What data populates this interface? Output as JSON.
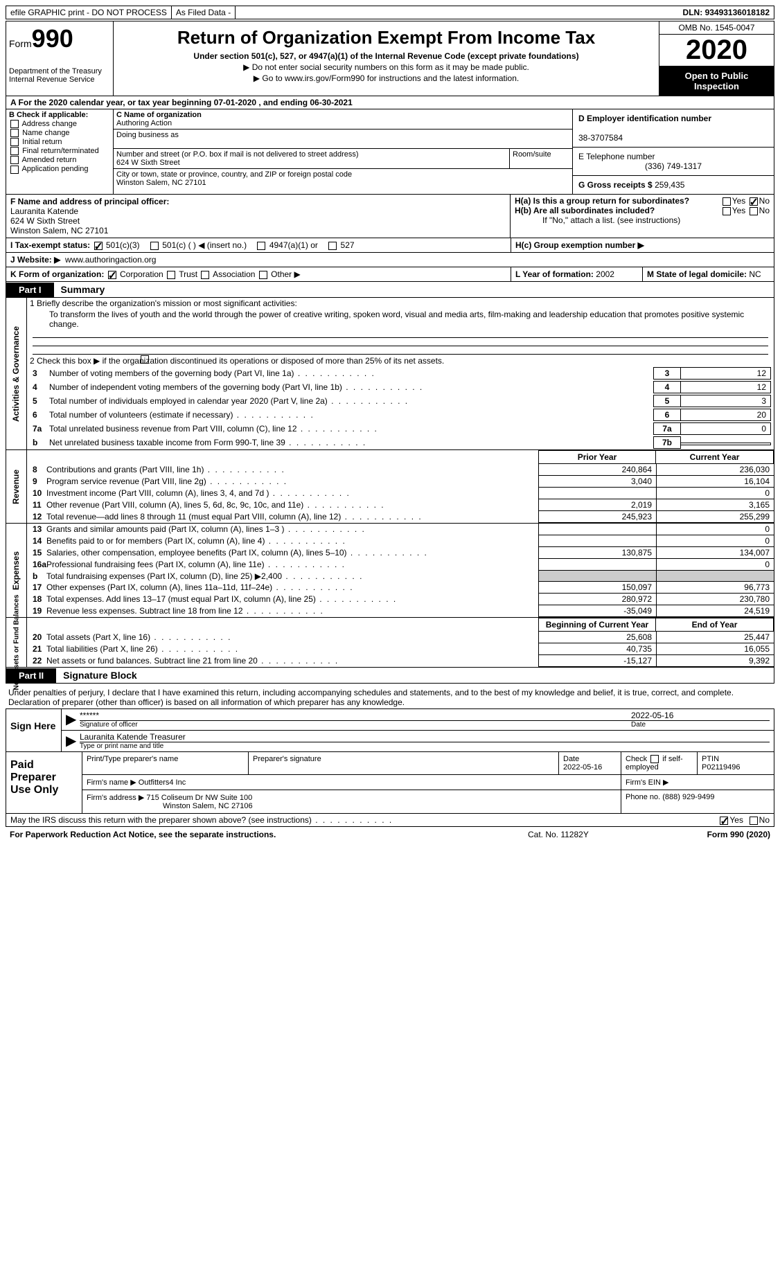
{
  "top": {
    "efile": "efile GRAPHIC print - DO NOT PROCESS",
    "asfiled": "As Filed Data -",
    "dln_lbl": "DLN:",
    "dln": "93493136018182"
  },
  "header": {
    "form": "Form",
    "num": "990",
    "dept": "Department of the Treasury\nInternal Revenue Service",
    "title": "Return of Organization Exempt From Income Tax",
    "sub": "Under section 501(c), 527, or 4947(a)(1) of the Internal Revenue Code (except private foundations)",
    "i1": "▶ Do not enter social security numbers on this form as it may be made public.",
    "i2_pre": "▶ Go to ",
    "i2_link": "www.irs.gov/Form990",
    "i2_post": " for instructions and the latest information.",
    "omb": "OMB No. 1545-0047",
    "year": "2020",
    "open": "Open to Public Inspection"
  },
  "a": {
    "text": "A   For the 2020 calendar year, or tax year beginning 07-01-2020  , and ending 06-30-2021"
  },
  "b": {
    "title": "B Check if applicable:",
    "opts": [
      "Address change",
      "Name change",
      "Initial return",
      "Final return/terminated",
      "Amended return",
      "Application pending"
    ]
  },
  "c": {
    "lbl_name": "C Name of organization",
    "name": "Authoring Action",
    "dba_lbl": "Doing business as",
    "dba": "",
    "street_lbl": "Number and street (or P.O. box if mail is not delivered to street address)",
    "room_lbl": "Room/suite",
    "street": "624 W Sixth Street",
    "city_lbl": "City or town, state or province, country, and ZIP or foreign postal code",
    "city": "Winston Salem, NC  27101"
  },
  "d": {
    "lbl": "D Employer identification number",
    "val": "38-3707584"
  },
  "e": {
    "lbl": "E Telephone number",
    "val": "(336) 749-1317"
  },
  "g": {
    "lbl": "G Gross receipts $",
    "val": "259,435"
  },
  "f": {
    "lbl": "F  Name and address of principal officer:",
    "name": "Lauranita Katende",
    "addr1": "624 W Sixth Street",
    "addr2": "Winston Salem, NC  27101"
  },
  "h": {
    "a": "H(a)  Is this a group return for subordinates?",
    "b": "H(b)  Are all subordinates included?",
    "note": "If \"No,\" attach a list. (see instructions)",
    "c": "H(c)  Group exemption number ▶",
    "yes": "Yes",
    "no": "No"
  },
  "i": {
    "lbl": "I   Tax-exempt status:",
    "o1": "501(c)(3)",
    "o2": "501(c) (   ) ◀ (insert no.)",
    "o3": "4947(a)(1) or",
    "o4": "527"
  },
  "j": {
    "lbl": "J   Website: ▶",
    "val": "www.authoringaction.org"
  },
  "k": {
    "lbl": "K Form of organization:",
    "o1": "Corporation",
    "o2": "Trust",
    "o3": "Association",
    "o4": "Other ▶"
  },
  "l": {
    "lbl": "L Year of formation:",
    "val": "2002"
  },
  "m": {
    "lbl": "M State of legal domicile:",
    "val": "NC"
  },
  "part1": {
    "tab": "Part I",
    "title": "Summary"
  },
  "ag": {
    "label": "Activities & Governance",
    "l1": "1  Briefly describe the organization's mission or most significant activities:",
    "mission": "To transform the lives of youth and the world through the power of creative writing, spoken word, visual and media arts, film-making and leadership education that promotes positive systemic change.",
    "l2": "2   Check this box ▶        if the organization discontinued its operations or disposed of more than 25% of its net assets.",
    "rows": [
      {
        "n": "3",
        "d": "Number of voting members of the governing body (Part VI, line 1a)",
        "b": "3",
        "v": "12"
      },
      {
        "n": "4",
        "d": "Number of independent voting members of the governing body (Part VI, line 1b)",
        "b": "4",
        "v": "12"
      },
      {
        "n": "5",
        "d": "Total number of individuals employed in calendar year 2020 (Part V, line 2a)",
        "b": "5",
        "v": "3"
      },
      {
        "n": "6",
        "d": "Total number of volunteers (estimate if necessary)",
        "b": "6",
        "v": "20"
      },
      {
        "n": "7a",
        "d": "Total unrelated business revenue from Part VIII, column (C), line 12",
        "b": "7a",
        "v": "0"
      },
      {
        "n": "b",
        "d": "Net unrelated business taxable income from Form 990-T, line 39",
        "b": "7b",
        "v": ""
      }
    ]
  },
  "colh": {
    "py": "Prior Year",
    "cy": "Current Year"
  },
  "rev": {
    "label": "Revenue",
    "rows": [
      {
        "n": "8",
        "d": "Contributions and grants (Part VIII, line 1h)",
        "c1": "240,864",
        "c2": "236,030"
      },
      {
        "n": "9",
        "d": "Program service revenue (Part VIII, line 2g)",
        "c1": "3,040",
        "c2": "16,104"
      },
      {
        "n": "10",
        "d": "Investment income (Part VIII, column (A), lines 3, 4, and 7d )",
        "c1": "",
        "c2": "0"
      },
      {
        "n": "11",
        "d": "Other revenue (Part VIII, column (A), lines 5, 6d, 8c, 9c, 10c, and 11e)",
        "c1": "2,019",
        "c2": "3,165"
      },
      {
        "n": "12",
        "d": "Total revenue—add lines 8 through 11 (must equal Part VIII, column (A), line 12)",
        "c1": "245,923",
        "c2": "255,299"
      }
    ]
  },
  "exp": {
    "label": "Expenses",
    "rows": [
      {
        "n": "13",
        "d": "Grants and similar amounts paid (Part IX, column (A), lines 1–3 )",
        "c1": "",
        "c2": "0"
      },
      {
        "n": "14",
        "d": "Benefits paid to or for members (Part IX, column (A), line 4)",
        "c1": "",
        "c2": "0"
      },
      {
        "n": "15",
        "d": "Salaries, other compensation, employee benefits (Part IX, column (A), lines 5–10)",
        "c1": "130,875",
        "c2": "134,007"
      },
      {
        "n": "16a",
        "d": "Professional fundraising fees (Part IX, column (A), line 11e)",
        "c1": "",
        "c2": "0"
      },
      {
        "n": "b",
        "d": "Total fundraising expenses (Part IX, column (D), line 25) ▶2,400",
        "c1": "—",
        "c2": "—"
      },
      {
        "n": "17",
        "d": "Other expenses (Part IX, column (A), lines 11a–11d, 11f–24e)",
        "c1": "150,097",
        "c2": "96,773"
      },
      {
        "n": "18",
        "d": "Total expenses. Add lines 13–17 (must equal Part IX, column (A), line 25)",
        "c1": "280,972",
        "c2": "230,780"
      },
      {
        "n": "19",
        "d": "Revenue less expenses. Subtract line 18 from line 12",
        "c1": "-35,049",
        "c2": "24,519"
      }
    ]
  },
  "colh2": {
    "py": "Beginning of Current Year",
    "cy": "End of Year"
  },
  "na": {
    "label": "Net Assets or Fund Balances",
    "rows": [
      {
        "n": "20",
        "d": "Total assets (Part X, line 16)",
        "c1": "25,608",
        "c2": "25,447"
      },
      {
        "n": "21",
        "d": "Total liabilities (Part X, line 26)",
        "c1": "40,735",
        "c2": "16,055"
      },
      {
        "n": "22",
        "d": "Net assets or fund balances. Subtract line 21 from line 20",
        "c1": "-15,127",
        "c2": "9,392"
      }
    ]
  },
  "part2": {
    "tab": "Part II",
    "title": "Signature Block"
  },
  "sig": {
    "decl": "Under penalties of perjury, I declare that I have examined this return, including accompanying schedules and statements, and to the best of my knowledge and belief, it is true, correct, and complete. Declaration of preparer (other than officer) is based on all information of which preparer has any knowledge.",
    "here": "Sign Here",
    "stars": "******",
    "siglbl": "Signature of officer",
    "date": "2022-05-16",
    "datelbl": "Date",
    "name": "Lauranita Katende Treasurer",
    "namelbl": "Type or print name and title"
  },
  "prep": {
    "here": "Paid Preparer Use Only",
    "h1": "Print/Type preparer's name",
    "h2": "Preparer's signature",
    "h3": "Date",
    "h3v": "2022-05-16",
    "h4": "Check        if self-employed",
    "h5": "PTIN",
    "h5v": "P02119496",
    "fn_lbl": "Firm's name   ▶",
    "fn": "Outfitters4 Inc",
    "fe_lbl": "Firm's EIN ▶",
    "fa_lbl": "Firm's address ▶",
    "fa1": "715 Coliseum Dr NW Suite 100",
    "fa2": "Winston Salem, NC  27106",
    "ph_lbl": "Phone no.",
    "ph": "(888) 929-9499"
  },
  "discuss": {
    "q": "May the IRS discuss this return with the preparer shown above? (see instructions)",
    "yes": "Yes",
    "no": "No"
  },
  "bottom": {
    "pra": "For Paperwork Reduction Act Notice, see the separate instructions.",
    "cat": "Cat. No. 11282Y",
    "form": "Form 990 (2020)"
  }
}
